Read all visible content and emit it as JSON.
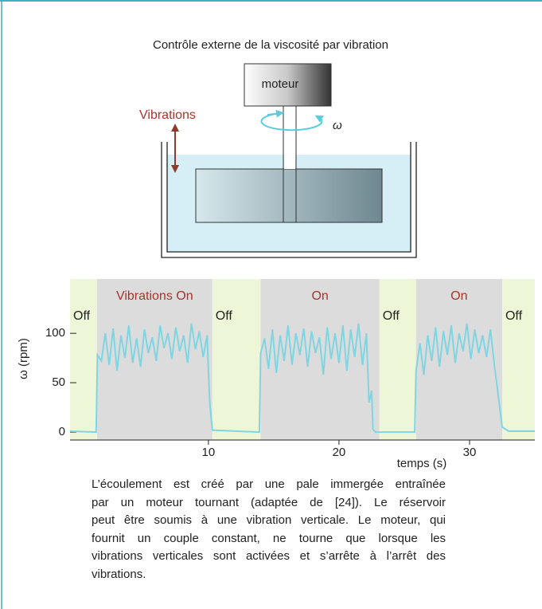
{
  "figure_title": "Contrôle externe de la viscosité par vibration",
  "diagram": {
    "motor_label": "moteur",
    "vibration_label": "Vibrations",
    "omega_label": "ω"
  },
  "chart_data": {
    "type": "line",
    "x_label": "temps (s)",
    "y_label": "ω (rpm)",
    "xlim": [
      -0.6,
      35.0
    ],
    "ylim": [
      -8,
      155
    ],
    "xticks": [
      10,
      20,
      30
    ],
    "yticks": [
      0,
      50,
      100
    ],
    "regions": [
      {
        "label": "Off",
        "start": -0.6,
        "end": 1.46,
        "color": "#eef6d8",
        "label_color": "#222222"
      },
      {
        "label": "Vibrations On",
        "start": 1.46,
        "end": 10.3,
        "color": "#dcdcdc",
        "label_color": "#a8342c"
      },
      {
        "label": "Off",
        "start": 10.3,
        "end": 14.0,
        "color": "#eef6d8",
        "label_color": "#222222"
      },
      {
        "label": "On",
        "start": 14.0,
        "end": 23.1,
        "color": "#dcdcdc",
        "label_color": "#a8342c"
      },
      {
        "label": "Off",
        "start": 23.1,
        "end": 25.9,
        "color": "#eef6d8",
        "label_color": "#222222"
      },
      {
        "label": "On",
        "start": 25.9,
        "end": 32.5,
        "color": "#dcdcdc",
        "label_color": "#a8342c"
      },
      {
        "label": "Off",
        "start": 32.5,
        "end": 35.0,
        "color": "#eef6d8",
        "label_color": "#222222"
      }
    ],
    "x": [
      -0.6,
      1.4,
      1.5,
      1.8,
      2.1,
      2.4,
      2.7,
      3.0,
      3.3,
      3.6,
      3.9,
      4.2,
      4.5,
      4.8,
      5.1,
      5.4,
      5.7,
      6.0,
      6.3,
      6.6,
      6.9,
      7.2,
      7.5,
      7.8,
      8.1,
      8.4,
      8.7,
      9.0,
      9.3,
      9.6,
      9.9,
      10.0,
      10.1,
      10.3,
      13.9,
      14.0,
      14.3,
      14.6,
      14.9,
      15.2,
      15.5,
      15.8,
      16.1,
      16.4,
      16.7,
      17.0,
      17.3,
      17.6,
      17.9,
      18.2,
      18.5,
      18.8,
      19.1,
      19.4,
      19.7,
      20.0,
      20.3,
      20.6,
      20.9,
      21.2,
      21.5,
      21.8,
      22.1,
      22.3,
      22.5,
      22.6,
      22.8,
      25.8,
      25.9,
      26.2,
      26.5,
      26.8,
      27.1,
      27.4,
      27.7,
      28.0,
      28.3,
      28.6,
      28.9,
      29.2,
      29.5,
      29.8,
      30.1,
      30.4,
      30.7,
      31.0,
      31.3,
      31.6,
      31.9,
      32.0,
      32.5,
      33.0,
      35.0
    ],
    "series": [
      {
        "name": "ω",
        "color": "#7fd6e2",
        "values": [
          1,
          0,
          78,
          72,
          100,
          68,
          105,
          62,
          98,
          75,
          108,
          70,
          95,
          66,
          104,
          80,
          96,
          72,
          108,
          85,
          100,
          74,
          106,
          82,
          98,
          70,
          110,
          84,
          102,
          76,
          98,
          62,
          30,
          2,
          0,
          80,
          95,
          64,
          104,
          60,
          98,
          72,
          108,
          68,
          100,
          78,
          105,
          66,
          102,
          80,
          96,
          58,
          106,
          74,
          100,
          70,
          108,
          62,
          104,
          76,
          110,
          68,
          100,
          30,
          42,
          3,
          0,
          0,
          62,
          90,
          58,
          98,
          72,
          106,
          66,
          102,
          78,
          108,
          70,
          100,
          82,
          110,
          74,
          104,
          80,
          98,
          76,
          104,
          68,
          58,
          5,
          1,
          1
        ]
      }
    ]
  },
  "caption": [
    "L’écoulement est créé par une pale immergée entraînée",
    "par un moteur tournant (adaptée de [24]). Le réservoir",
    "peut être soumis à une vibration verticale. Le moteur, qui",
    "fournit un couple constant, ne tourne que lorsque les",
    "vibrations verticales sont activées et s’arrête à l’arrêt des",
    "vibrations."
  ]
}
